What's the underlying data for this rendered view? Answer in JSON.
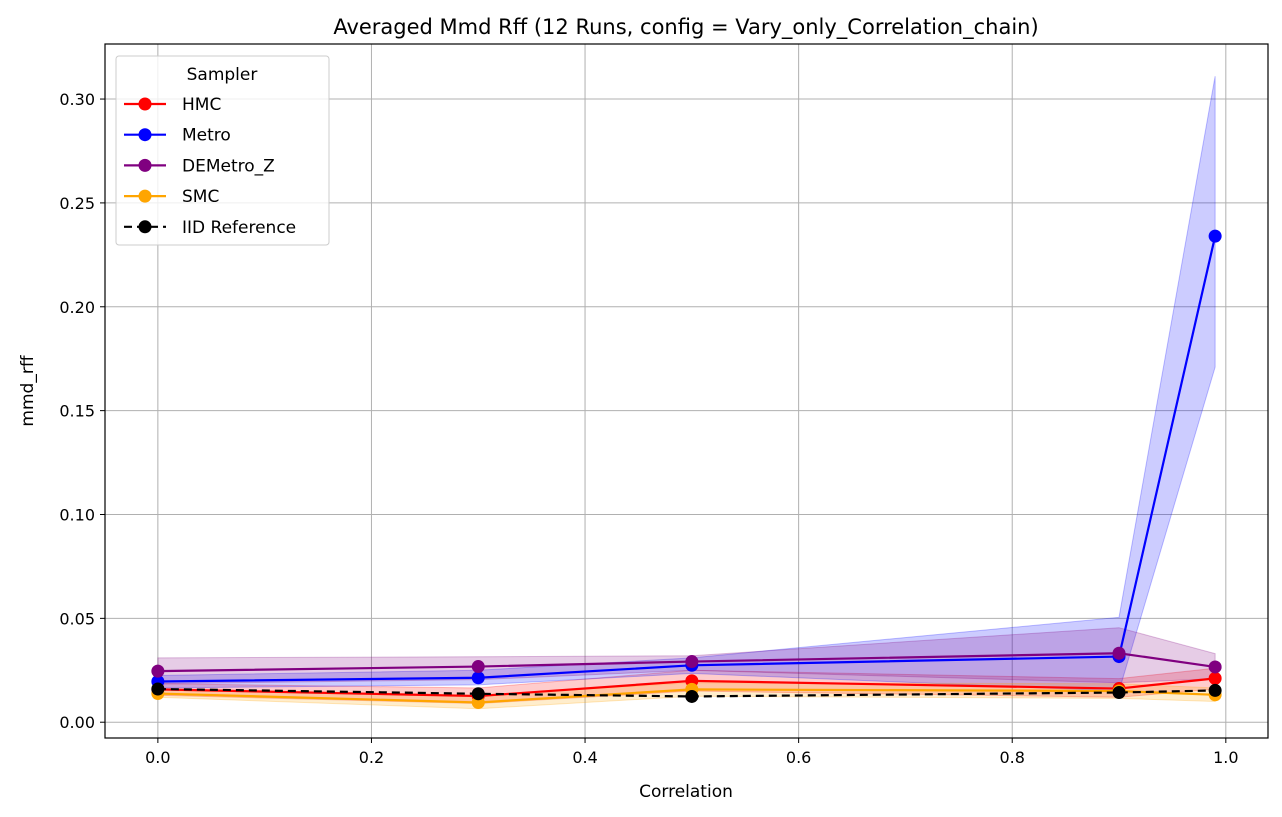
{
  "chart_data": {
    "type": "line",
    "title": "Averaged Mmd Rff (12 Runs, config = Vary_only_Correlation_chain)",
    "xlabel": "Correlation",
    "ylabel": "mmd_rff",
    "xlim": [
      -0.0495,
      1.0395
    ],
    "ylim": [
      -0.0076,
      0.3265
    ],
    "xticks": [
      0.0,
      0.2,
      0.4,
      0.6,
      0.8,
      1.0
    ],
    "xtick_labels": [
      "0.0",
      "0.2",
      "0.4",
      "0.6",
      "0.8",
      "1.0"
    ],
    "yticks": [
      0.0,
      0.05,
      0.1,
      0.15,
      0.2,
      0.25,
      0.3
    ],
    "ytick_labels": [
      "0.00",
      "0.05",
      "0.10",
      "0.15",
      "0.20",
      "0.25",
      "0.30"
    ],
    "grid": true,
    "legend": {
      "title": "Sampler",
      "position": "top-left"
    },
    "x": [
      0.0,
      0.3,
      0.5,
      0.9,
      0.99
    ],
    "series": [
      {
        "name": "HMC",
        "color": "#ff0000",
        "dashed": false,
        "values": [
          0.0158,
          0.0126,
          0.0199,
          0.0162,
          0.0211
        ],
        "band_lower": [
          0.013,
          0.009,
          0.015,
          0.012,
          0.016
        ],
        "band_upper": [
          0.0185,
          0.0165,
          0.025,
          0.021,
          0.026
        ]
      },
      {
        "name": "Metro",
        "color": "#0000ff",
        "dashed": false,
        "values": [
          0.0196,
          0.0214,
          0.0274,
          0.0316,
          0.234
        ],
        "band_lower": [
          0.0165,
          0.018,
          0.0235,
          0.015,
          0.171
        ],
        "band_upper": [
          0.0225,
          0.025,
          0.031,
          0.0505,
          0.311
        ]
      },
      {
        "name": "DEMetro_Z",
        "color": "#800080",
        "dashed": false,
        "values": [
          0.0246,
          0.0268,
          0.0292,
          0.0332,
          0.0266
        ],
        "band_lower": [
          0.0185,
          0.0205,
          0.025,
          0.019,
          0.021
        ],
        "band_upper": [
          0.031,
          0.0315,
          0.032,
          0.0455,
          0.033
        ]
      },
      {
        "name": "SMC",
        "color": "#ffa500",
        "dashed": false,
        "values": [
          0.0138,
          0.0095,
          0.0158,
          0.015,
          0.0132
        ],
        "band_lower": [
          0.012,
          0.0065,
          0.0125,
          0.0115,
          0.01
        ],
        "band_upper": [
          0.016,
          0.013,
          0.019,
          0.0185,
          0.0165
        ]
      },
      {
        "name": "IID Reference",
        "color": "#000000",
        "dashed": true,
        "values": [
          0.016,
          0.0137,
          0.0124,
          0.0143,
          0.0153
        ],
        "band_lower": null,
        "band_upper": null
      }
    ]
  }
}
